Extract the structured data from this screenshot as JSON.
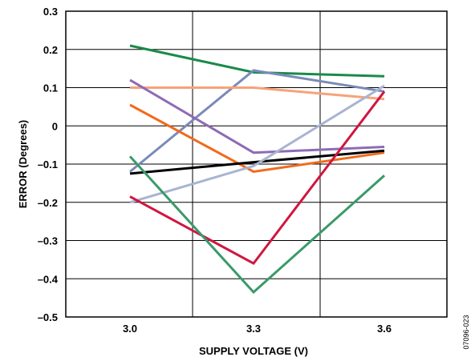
{
  "chart_data": {
    "type": "line",
    "xlabel": "SUPPLY VOLTAGE (V)",
    "ylabel": "ERROR (Degrees)",
    "x": [
      3.0,
      3.3,
      3.6
    ],
    "x_tick_labels": [
      "3.0",
      "3.3",
      "3.6"
    ],
    "y_tick_labels": [
      "0.3",
      "0.2",
      "0.1",
      "0",
      "–0.1",
      "–0.2",
      "–0.3",
      "–0.4",
      "–0.5"
    ],
    "ylim": [
      -0.5,
      0.3
    ],
    "grid": true,
    "figure_id": "07096-023",
    "series": [
      {
        "color": "#1a8a4a",
        "values": [
          0.21,
          0.14,
          0.13
        ]
      },
      {
        "color": "#7a8ab8",
        "values": [
          -0.12,
          0.145,
          0.09
        ]
      },
      {
        "color": "#f7a27a",
        "values": [
          0.1,
          0.1,
          0.07
        ]
      },
      {
        "color": "#8e6bb5",
        "values": [
          0.12,
          -0.07,
          -0.055
        ]
      },
      {
        "color": "#f26a1b",
        "values": [
          0.055,
          -0.12,
          -0.07
        ]
      },
      {
        "color": "#000000",
        "values": [
          -0.125,
          -0.095,
          -0.065
        ]
      },
      {
        "color": "#a9b4d2",
        "values": [
          -0.2,
          -0.105,
          0.105
        ]
      },
      {
        "color": "#d0163f",
        "values": [
          -0.185,
          -0.36,
          0.09
        ]
      },
      {
        "color": "#3a9a6a",
        "values": [
          -0.08,
          -0.435,
          -0.13
        ]
      }
    ]
  }
}
